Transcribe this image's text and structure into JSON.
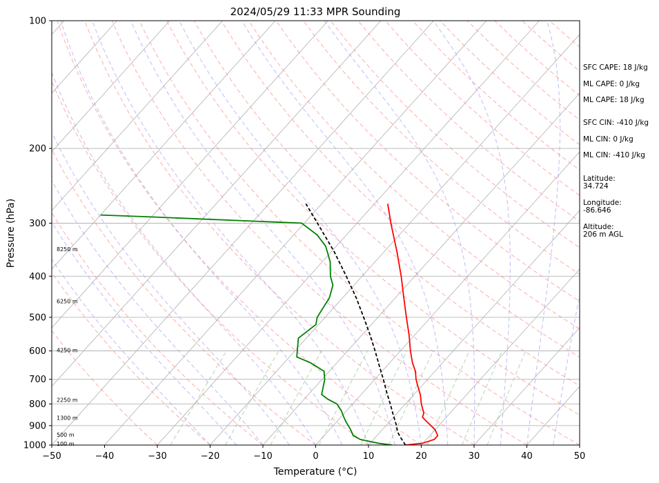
{
  "chart_data": {
    "type": "line",
    "title": "2024/05/29 11:33 MPR Sounding",
    "xlabel": "Temperature (°C)",
    "ylabel": "Pressure (hPa)",
    "xlim": [
      -50,
      50
    ],
    "ylim": [
      1000,
      100
    ],
    "y_scale": "log",
    "skew": true,
    "grid": true,
    "x_ticks": [
      "−50",
      "−40",
      "−30",
      "−20",
      "−10",
      "0",
      "10",
      "20",
      "30",
      "40",
      "50"
    ],
    "y_ticks": [
      "100",
      "200",
      "300",
      "400",
      "500",
      "600",
      "700",
      "800",
      "900",
      "1000"
    ],
    "series": [
      {
        "color": "#ff0000",
        "style": "solid",
        "points": [
          [
            1000,
            17
          ],
          [
            990,
            20
          ],
          [
            970,
            21.5
          ],
          [
            950,
            21.5
          ],
          [
            920,
            20
          ],
          [
            880,
            17
          ],
          [
            860,
            15.5
          ],
          [
            840,
            15
          ],
          [
            820,
            14
          ],
          [
            800,
            13
          ],
          [
            760,
            11.2
          ],
          [
            730,
            9.5
          ],
          [
            700,
            7.8
          ],
          [
            670,
            6.3
          ],
          [
            640,
            4.3
          ],
          [
            600,
            1.9
          ],
          [
            550,
            -1.1
          ],
          [
            500,
            -4.6
          ],
          [
            450,
            -8.4
          ],
          [
            400,
            -12.6
          ],
          [
            350,
            -17.6
          ],
          [
            300,
            -23.6
          ],
          [
            270,
            -27.5
          ]
        ]
      },
      {
        "color": "#008000",
        "style": "solid",
        "points": [
          [
            1000,
            14.5
          ],
          [
            990,
            11.5
          ],
          [
            970,
            7.5
          ],
          [
            950,
            5.5
          ],
          [
            920,
            4
          ],
          [
            880,
            1.7
          ],
          [
            860,
            0.6
          ],
          [
            830,
            -1
          ],
          [
            800,
            -3
          ],
          [
            780,
            -5.5
          ],
          [
            760,
            -7.5
          ],
          [
            700,
            -9.5
          ],
          [
            670,
            -11
          ],
          [
            640,
            -15
          ],
          [
            620,
            -18.6
          ],
          [
            560,
            -21.5
          ],
          [
            520,
            -20.5
          ],
          [
            500,
            -21.5
          ],
          [
            450,
            -22.5
          ],
          [
            420,
            -24
          ],
          [
            400,
            -26
          ],
          [
            370,
            -28.5
          ],
          [
            340,
            -32
          ],
          [
            320,
            -35.5
          ],
          [
            300,
            -40.5
          ],
          [
            290,
            -70
          ],
          [
            287,
            -80
          ]
        ]
      },
      {
        "color": "#000000",
        "style": "dashed",
        "points": [
          [
            1000,
            17
          ],
          [
            960,
            14.8
          ],
          [
            930,
            13.2
          ],
          [
            900,
            12
          ],
          [
            850,
            9.6
          ],
          [
            800,
            7.1
          ],
          [
            750,
            4.4
          ],
          [
            700,
            1.6
          ],
          [
            650,
            -1.5
          ],
          [
            600,
            -4.8
          ],
          [
            550,
            -8.5
          ],
          [
            500,
            -12.7
          ],
          [
            450,
            -17.4
          ],
          [
            400,
            -23
          ],
          [
            350,
            -29.5
          ],
          [
            300,
            -37.5
          ],
          [
            270,
            -43
          ]
        ]
      }
    ],
    "height_labels": [
      "8250 m",
      "6250 m",
      "4250 m",
      "2250 m",
      "1300 m",
      "500 m",
      "100 m"
    ],
    "height_label_pressures": [
      345,
      458,
      598,
      783,
      863,
      945,
      993
    ]
  },
  "info_panel": {
    "sfc_cape": "SFC CAPE: 18 J/kg",
    "ml_cape_1": "ML CAPE: 0 J/kg",
    "ml_cape_2": "ML CAPE: 18 J/kg",
    "sfc_cin": "SFC CIN: -410 J/kg",
    "ml_cin_1": "ML CIN: 0 J/kg",
    "ml_cin_2": "ML CIN: -410 J/kg",
    "latitude_label": "Latitude:",
    "latitude_value": "34.724",
    "longitude_label": "Longitude:",
    "longitude_value": "-86.646",
    "altitude_label": "Altitude:",
    "altitude_value": "206 m AGL"
  }
}
